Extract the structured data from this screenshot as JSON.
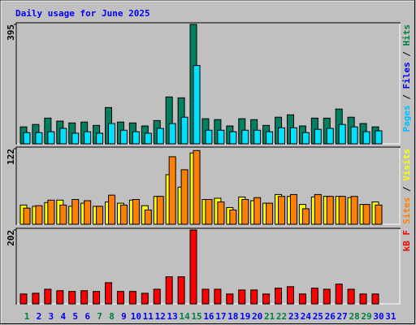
{
  "chart_data": [
    {
      "type": "bar",
      "title": "Daily usage for June 2025",
      "ylim": [
        0,
        395
      ],
      "yticks": [
        395
      ],
      "legend_separator": " / ",
      "legend": [
        {
          "label": "Pages",
          "color": "#00c0ff"
        },
        {
          "label": "Files",
          "color": "#0000ff"
        },
        {
          "label": "Hits",
          "color": "#008040"
        }
      ],
      "series": [
        {
          "name": "Hits",
          "color": "#008060",
          "values": [
            56,
            64,
            85,
            75,
            69,
            72,
            61,
            120,
            72,
            69,
            59,
            77,
            155,
            152,
            395,
            83,
            80,
            59,
            83,
            80,
            61,
            88,
            96,
            59,
            85,
            85,
            115,
            88,
            67,
            56,
            null
          ]
        },
        {
          "name": "Pages",
          "color": "#00e0ff",
          "values": [
            37,
            37,
            40,
            51,
            35,
            40,
            35,
            67,
            45,
            40,
            35,
            51,
            67,
            88,
            259,
            45,
            45,
            40,
            45,
            45,
            40,
            53,
            53,
            37,
            48,
            51,
            64,
            56,
            40,
            43,
            null
          ]
        }
      ]
    },
    {
      "type": "bar",
      "ylim": [
        0,
        122
      ],
      "yticks": [
        122
      ],
      "legend_separator": " / ",
      "legend": [
        {
          "label": "Sites",
          "color": "#ff8000"
        },
        {
          "label": "Visits",
          "color": "#ffff00"
        }
      ],
      "series": [
        {
          "name": "Visits",
          "color": "#ffff00",
          "values": [
            31,
            29,
            35,
            39,
            29,
            34,
            29,
            36,
            34,
            39,
            30,
            45,
            80,
            60,
            115,
            40,
            42,
            27,
            44,
            38,
            34,
            48,
            45,
            32,
            44,
            45,
            45,
            43,
            32,
            36,
            null
          ]
        },
        {
          "name": "Sites",
          "color": "#ff8000",
          "values": [
            26,
            30,
            39,
            31,
            40,
            38,
            29,
            47,
            31,
            40,
            23,
            45,
            109,
            88,
            119,
            40,
            36,
            23,
            40,
            43,
            34,
            45,
            48,
            25,
            48,
            45,
            45,
            45,
            32,
            31,
            null
          ]
        }
      ]
    },
    {
      "type": "bar",
      "ylim": [
        0,
        202
      ],
      "yticks": [
        202
      ],
      "legend_separator": " / ",
      "legend": [
        {
          "label": "kB F",
          "color": "#ff0000"
        }
      ],
      "series": [
        {
          "name": "kB F",
          "color": "#ff0000",
          "values": [
            27,
            29,
            40,
            36,
            34,
            36,
            34,
            58,
            34,
            34,
            29,
            40,
            74,
            74,
            202,
            40,
            40,
            27,
            38,
            38,
            27,
            43,
            47,
            27,
            43,
            40,
            54,
            40,
            27,
            27,
            null
          ]
        }
      ],
      "categories": [
        "1",
        "2",
        "3",
        "4",
        "5",
        "6",
        "7",
        "8",
        "9",
        "10",
        "11",
        "12",
        "13",
        "14",
        "15",
        "16",
        "17",
        "18",
        "19",
        "20",
        "21",
        "22",
        "23",
        "24",
        "25",
        "26",
        "27",
        "28",
        "29",
        "30",
        "31"
      ],
      "category_colors": [
        "#008040",
        "#0000ff",
        "#0000ff",
        "#0000ff",
        "#0000ff",
        "#0000ff",
        "#008040",
        "#008040",
        "#0000ff",
        "#0000ff",
        "#0000ff",
        "#0000ff",
        "#0000ff",
        "#008040",
        "#008040",
        "#0000ff",
        "#0000ff",
        "#0000ff",
        "#0000ff",
        "#0000ff",
        "#008040",
        "#008040",
        "#0000ff",
        "#0000ff",
        "#0000ff",
        "#0000ff",
        "#0000ff",
        "#008040",
        "#008040",
        "#0000ff",
        "#0000ff"
      ]
    }
  ]
}
